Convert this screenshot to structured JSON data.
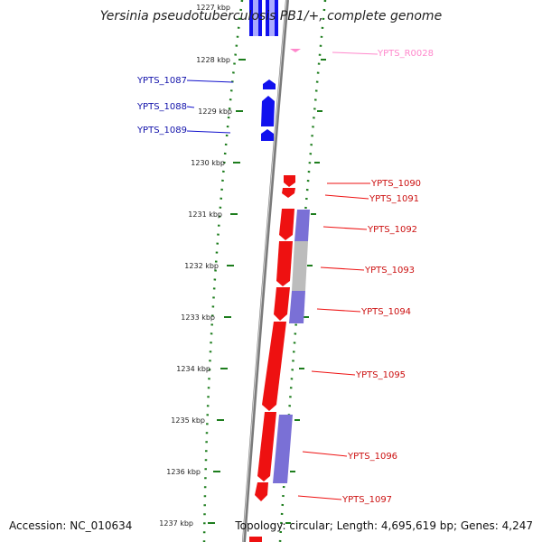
{
  "title": "Yersinia pseudotuberculosis PB1/+, complete genome",
  "accession": "Accession: NC_010634",
  "topology": "Topology: circular; Length: 4,695,619 bp; Genes: 4,247",
  "colors": {
    "forward_gene": "#ee1111",
    "reverse_gene": "#1111ee",
    "rna": "#ff88cc",
    "pale_blue": "#7a70d6",
    "pale_grey": "#bcbcbc",
    "ticks": "#1d7d1d",
    "backbone": "#777777"
  },
  "scale": {
    "unit": "kbp",
    "labels": [
      "1227 kbp",
      "1228 kbp",
      "1229 kbp",
      "1230 kbp",
      "1231 kbp",
      "1232 kbp",
      "1233 kbp",
      "1234 kbp",
      "1235 kbp",
      "1236 kbp",
      "1237 kbp"
    ]
  },
  "genes": [
    {
      "id": "YPTS_R0028",
      "strand": "forward",
      "type": "rna"
    },
    {
      "id": "YPTS_1087",
      "strand": "reverse",
      "type": "gene"
    },
    {
      "id": "YPTS_1088",
      "strand": "reverse",
      "type": "gene"
    },
    {
      "id": "YPTS_1089",
      "strand": "reverse",
      "type": "gene"
    },
    {
      "id": "YPTS_1090",
      "strand": "forward",
      "type": "gene"
    },
    {
      "id": "YPTS_1091",
      "strand": "forward",
      "type": "gene"
    },
    {
      "id": "YPTS_1092",
      "strand": "forward",
      "type": "gene"
    },
    {
      "id": "YPTS_1093",
      "strand": "forward",
      "type": "gene"
    },
    {
      "id": "YPTS_1094",
      "strand": "forward",
      "type": "gene"
    },
    {
      "id": "YPTS_1095",
      "strand": "forward",
      "type": "gene"
    },
    {
      "id": "YPTS_1096",
      "strand": "forward",
      "type": "gene"
    },
    {
      "id": "YPTS_1097",
      "strand": "forward",
      "type": "gene"
    }
  ]
}
